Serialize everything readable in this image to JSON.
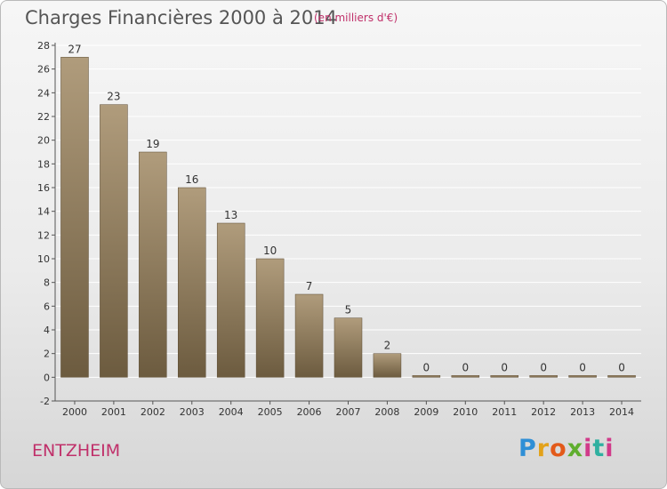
{
  "title": "Charges Financières 2000 à 2014",
  "subtitle": "(en milliers d'€)",
  "commune": "ENTZHEIM",
  "logo": {
    "parts": [
      "P",
      "r",
      "o",
      "x",
      "i",
      "t",
      "i"
    ]
  },
  "colors": {
    "bar_light": "#b09c7c",
    "bar_dark": "#6c5b3f",
    "accent": "#c0306a",
    "axis": "#555555",
    "grid": "#ffffff"
  },
  "chart_data": {
    "type": "bar",
    "categories": [
      "2000",
      "2001",
      "2002",
      "2003",
      "2004",
      "2005",
      "2006",
      "2007",
      "2008",
      "2009",
      "2010",
      "2011",
      "2012",
      "2013",
      "2014"
    ],
    "values": [
      27,
      23,
      19,
      16,
      13,
      10,
      7,
      5,
      2,
      0,
      0,
      0,
      0,
      0,
      0
    ],
    "data_labels": [
      "27",
      "23",
      "19",
      "16",
      "13",
      "10",
      "7",
      "5",
      "2",
      "0",
      "0",
      "0",
      "0",
      "0",
      "0"
    ],
    "ylim": [
      -2,
      28
    ],
    "yticks": [
      -2,
      0,
      2,
      4,
      6,
      8,
      10,
      12,
      14,
      16,
      18,
      20,
      22,
      24,
      26,
      28
    ],
    "grid": true,
    "xlabel": "",
    "ylabel": ""
  }
}
